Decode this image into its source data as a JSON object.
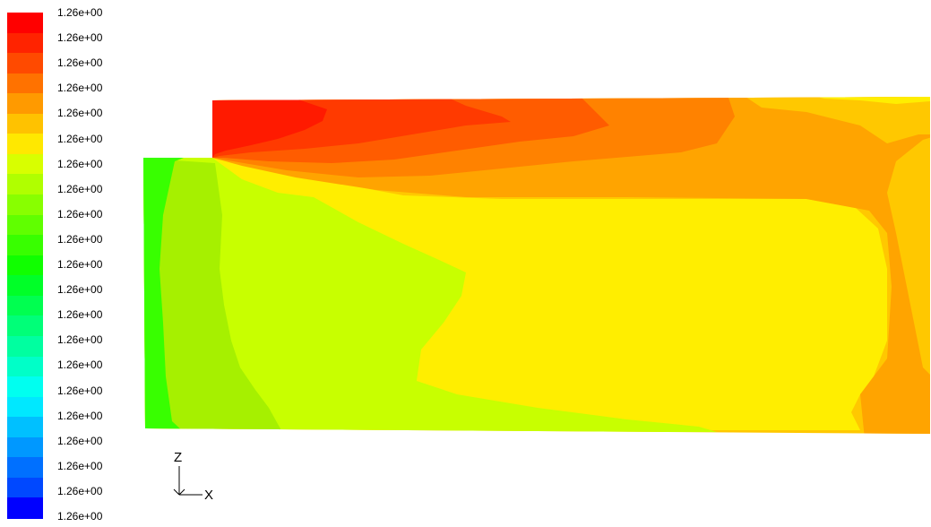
{
  "legend": {
    "colors": [
      "#ff0000",
      "#ff2300",
      "#ff4a00",
      "#ff7200",
      "#ff9a00",
      "#ffc200",
      "#ffe800",
      "#d8ff00",
      "#b0ff00",
      "#88ff00",
      "#60ff00",
      "#38ff00",
      "#10ff00",
      "#00ff28",
      "#00ff50",
      "#00ff78",
      "#00ffa0",
      "#00ffc8",
      "#00fff0",
      "#00e8ff",
      "#00c0ff",
      "#0098ff",
      "#0070ff",
      "#0048ff",
      "#0000ff"
    ],
    "labels": [
      "1.26e+00",
      "1.26e+00",
      "1.26e+00",
      "1.26e+00",
      "1.26e+00",
      "1.26e+00",
      "1.26e+00",
      "1.26e+00",
      "1.26e+00",
      "1.26e+00",
      "1.26e+00",
      "1.26e+00",
      "1.26e+00",
      "1.26e+00",
      "1.26e+00",
      "1.26e+00",
      "1.26e+00",
      "1.26e+00",
      "1.26e+00",
      "1.26e+00",
      "1.26e+00"
    ]
  },
  "contour": {
    "colors": {
      "red": "#ff1a00",
      "red_orange": "#ff3a00",
      "orange_red": "#ff5c00",
      "orange": "#ff8200",
      "light_orange": "#ffa400",
      "amber": "#ffc800",
      "yellow": "#ffee00",
      "yellow_green": "#c8ff00",
      "lime": "#a6f000",
      "green": "#38ff00"
    }
  },
  "axes": {
    "vertical_label": "Z",
    "horizontal_label": "X"
  }
}
